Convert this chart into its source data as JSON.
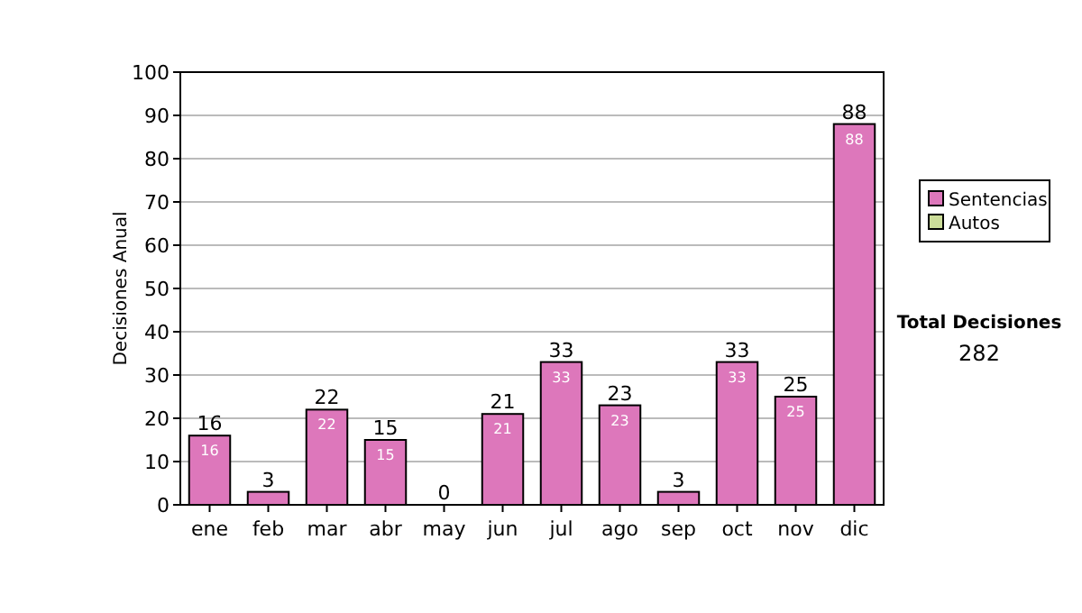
{
  "chart_data": {
    "type": "bar",
    "stacked": true,
    "ylabel": "Decisiones Anual",
    "categories": [
      "ene",
      "feb",
      "mar",
      "abr",
      "may",
      "jun",
      "jul",
      "ago",
      "sep",
      "oct",
      "nov",
      "dic"
    ],
    "series": [
      {
        "name": "Sentencias",
        "color": "#dd77bb",
        "values": [
          16,
          3,
          22,
          15,
          0,
          21,
          33,
          23,
          3,
          33,
          25,
          88
        ],
        "value_labels": [
          "16",
          null,
          "22",
          "15",
          null,
          "21",
          "33",
          "23",
          null,
          "33",
          "25",
          "88"
        ]
      },
      {
        "name": "Autos",
        "color": "#ccdd99",
        "values": [
          0,
          0,
          0,
          0,
          0,
          0,
          0,
          0,
          0,
          0,
          0,
          0
        ]
      }
    ],
    "totals": [
      "16",
      "3",
      "22",
      "15",
      "0",
      "21",
      "33",
      "23",
      "3",
      "33",
      "25",
      "88"
    ],
    "ylim": [
      0,
      100
    ],
    "yticks": [
      0,
      10,
      20,
      30,
      40,
      50,
      60,
      70,
      80,
      90,
      100
    ],
    "grid": "y",
    "legend": "right",
    "annotations": [
      "Total Decisiones",
      "282"
    ]
  }
}
